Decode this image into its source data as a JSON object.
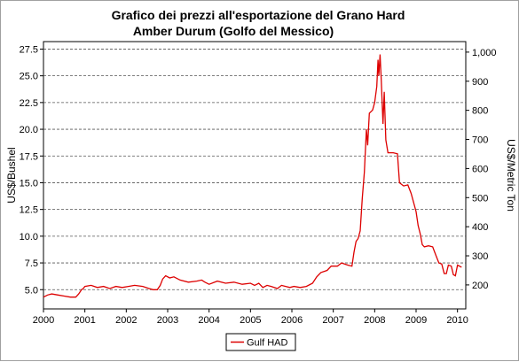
{
  "chart_data": {
    "type": "line",
    "title": "Grafico dei prezzi all'esportazione del Grano Hard",
    "subtitle": "Amber Durum (Golfo del Messico)",
    "ylabel": "US$/Bushel",
    "ylabel_right": "US$/Metric Ton",
    "xlabel": "",
    "x_ticks": [
      "2000",
      "2001",
      "2002",
      "2003",
      "2004",
      "2005",
      "2006",
      "2007",
      "2008",
      "2009",
      "2010"
    ],
    "y_ticks": [
      "5.0",
      "7.5",
      "10.0",
      "12.5",
      "15.0",
      "17.5",
      "20.0",
      "22.5",
      "25.0",
      "27.5"
    ],
    "y_ticks_right": [
      "200",
      "300",
      "400",
      "500",
      "600",
      "700",
      "800",
      "900",
      "1,000"
    ],
    "xlim": [
      2000,
      2010.2
    ],
    "ylim": [
      3.2,
      28.2
    ],
    "grid": "horizontal dashed",
    "legend_position": "bottom-center",
    "line_color": "#dd0000",
    "series": [
      {
        "name": "Gulf HAD",
        "color": "#dd0000",
        "points": [
          [
            2000.0,
            4.3
          ],
          [
            2000.1,
            4.5
          ],
          [
            2000.2,
            4.6
          ],
          [
            2000.35,
            4.5
          ],
          [
            2000.5,
            4.4
          ],
          [
            2000.65,
            4.3
          ],
          [
            2000.78,
            4.3
          ],
          [
            2000.85,
            4.6
          ],
          [
            2000.92,
            5.0
          ],
          [
            2000.96,
            5.1
          ],
          [
            2001.0,
            5.3
          ],
          [
            2001.15,
            5.4
          ],
          [
            2001.3,
            5.2
          ],
          [
            2001.45,
            5.3
          ],
          [
            2001.6,
            5.1
          ],
          [
            2001.75,
            5.3
          ],
          [
            2001.9,
            5.2
          ],
          [
            2002.05,
            5.3
          ],
          [
            2002.2,
            5.4
          ],
          [
            2002.4,
            5.3
          ],
          [
            2002.55,
            5.1
          ],
          [
            2002.65,
            5.0
          ],
          [
            2002.75,
            5.0
          ],
          [
            2002.82,
            5.4
          ],
          [
            2002.88,
            6.0
          ],
          [
            2002.95,
            6.3
          ],
          [
            2003.05,
            6.1
          ],
          [
            2003.15,
            6.2
          ],
          [
            2003.3,
            5.9
          ],
          [
            2003.5,
            5.7
          ],
          [
            2003.7,
            5.8
          ],
          [
            2003.82,
            5.9
          ],
          [
            2003.9,
            5.7
          ],
          [
            2004.0,
            5.5
          ],
          [
            2004.2,
            5.8
          ],
          [
            2004.4,
            5.6
          ],
          [
            2004.6,
            5.7
          ],
          [
            2004.8,
            5.5
          ],
          [
            2005.0,
            5.6
          ],
          [
            2005.1,
            5.4
          ],
          [
            2005.2,
            5.6
          ],
          [
            2005.3,
            5.2
          ],
          [
            2005.4,
            5.4
          ],
          [
            2005.5,
            5.3
          ],
          [
            2005.65,
            5.1
          ],
          [
            2005.75,
            5.4
          ],
          [
            2005.85,
            5.3
          ],
          [
            2005.95,
            5.2
          ],
          [
            2006.05,
            5.3
          ],
          [
            2006.2,
            5.2
          ],
          [
            2006.35,
            5.3
          ],
          [
            2006.5,
            5.6
          ],
          [
            2006.6,
            6.2
          ],
          [
            2006.7,
            6.6
          ],
          [
            2006.85,
            6.8
          ],
          [
            2006.95,
            7.2
          ],
          [
            2007.1,
            7.2
          ],
          [
            2007.2,
            7.5
          ],
          [
            2007.35,
            7.3
          ],
          [
            2007.45,
            7.2
          ],
          [
            2007.5,
            8.5
          ],
          [
            2007.55,
            9.5
          ],
          [
            2007.6,
            9.8
          ],
          [
            2007.65,
            10.5
          ],
          [
            2007.7,
            13.5
          ],
          [
            2007.75,
            16.0
          ],
          [
            2007.8,
            20.0
          ],
          [
            2007.83,
            18.5
          ],
          [
            2007.87,
            21.5
          ],
          [
            2007.95,
            21.8
          ],
          [
            2008.0,
            22.5
          ],
          [
            2008.05,
            24.0
          ],
          [
            2008.08,
            26.5
          ],
          [
            2008.1,
            25.0
          ],
          [
            2008.13,
            27.0
          ],
          [
            2008.16,
            24.5
          ],
          [
            2008.2,
            20.5
          ],
          [
            2008.23,
            23.5
          ],
          [
            2008.27,
            19.0
          ],
          [
            2008.32,
            17.8
          ],
          [
            2008.45,
            17.8
          ],
          [
            2008.55,
            17.7
          ],
          [
            2008.6,
            15.0
          ],
          [
            2008.7,
            14.7
          ],
          [
            2008.8,
            14.8
          ],
          [
            2008.88,
            14.0
          ],
          [
            2008.95,
            13.0
          ],
          [
            2009.0,
            12.3
          ],
          [
            2009.05,
            11.0
          ],
          [
            2009.1,
            10.2
          ],
          [
            2009.15,
            9.2
          ],
          [
            2009.2,
            9.0
          ],
          [
            2009.3,
            9.1
          ],
          [
            2009.4,
            9.0
          ],
          [
            2009.45,
            8.5
          ],
          [
            2009.5,
            8.0
          ],
          [
            2009.55,
            7.5
          ],
          [
            2009.62,
            7.4
          ],
          [
            2009.68,
            6.5
          ],
          [
            2009.73,
            6.5
          ],
          [
            2009.78,
            7.3
          ],
          [
            2009.85,
            7.2
          ],
          [
            2009.9,
            6.4
          ],
          [
            2009.95,
            6.3
          ],
          [
            2010.0,
            7.3
          ],
          [
            2010.1,
            7.1
          ]
        ]
      }
    ]
  }
}
